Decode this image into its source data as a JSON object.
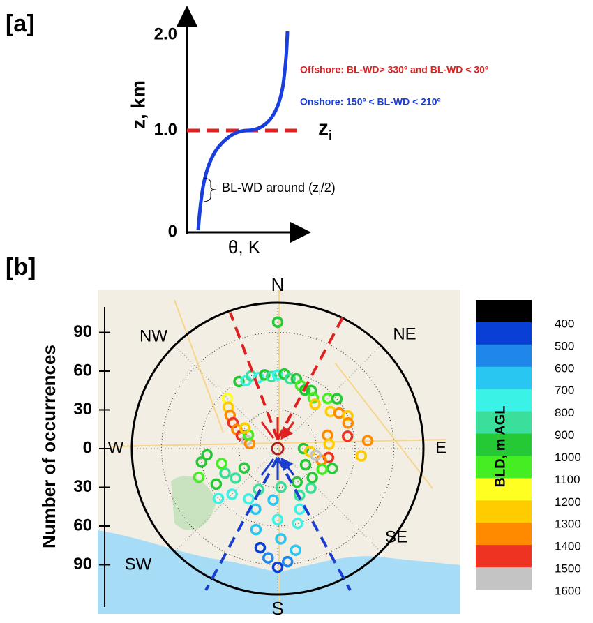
{
  "panel_a": {
    "label": "[a]",
    "y_label": "z, km",
    "x_label": "θ, K",
    "y_ticks": [
      "0",
      "1.0",
      "2.0"
    ],
    "zi_label": "z",
    "zi_sub": "i",
    "offshore": "Offshore: BL-WD> 330º  and BL-WD < 30º",
    "onshore": "Onshore: 150º < BL-WD < 210º",
    "annotation": [
      "BL-WD around (z",
      "i",
      "/2)"
    ]
  },
  "chart_data": {
    "type": "polar-scatter",
    "label": "[b]",
    "y_label": "Number of occurrences",
    "rlim": [
      0,
      113
    ],
    "rticks": [
      0,
      30,
      60,
      90
    ],
    "directions": [
      "N",
      "NE",
      "E",
      "SE",
      "S",
      "SW",
      "W",
      "NW"
    ],
    "colorbar": {
      "label": "BLD, m AGL",
      "ticks": [
        400,
        500,
        600,
        700,
        800,
        900,
        1000,
        1100,
        1200,
        1300,
        1400,
        1500,
        1600
      ],
      "colors": [
        "#000000",
        "#0a3fd6",
        "#1f86ea",
        "#29c6f2",
        "#3af2e6",
        "#3adf9c",
        "#25c936",
        "#44ee22",
        "#ffff22",
        "#ffcc00",
        "#ff8a00",
        "#ee3322",
        "#c4c4c4"
      ]
    },
    "points": {
      "direction": [
        0,
        -30,
        -25,
        -20,
        -15,
        -10,
        -5,
        0,
        5,
        10,
        15,
        20,
        25,
        30,
        35,
        40,
        -45,
        -50,
        -55,
        -60,
        -65,
        -70,
        -75,
        -80,
        -65,
        -58,
        45,
        50,
        55,
        60,
        65,
        70,
        75,
        80,
        85,
        95,
        100,
        105,
        110,
        115,
        -95,
        -100,
        -110,
        -115,
        -120,
        -125,
        -130,
        -135,
        -105,
        -120,
        180,
        175,
        185,
        170,
        190,
        178,
        165,
        195,
        180,
        160,
        200,
        155,
        175,
        150,
        140,
        130,
        205,
        210,
        185,
        90,
        95,
        100,
        120,
        85
      ],
      "count": [
        98,
        60,
        58,
        60,
        57,
        58,
        56,
        57,
        58,
        55,
        56,
        52,
        50,
        52,
        48,
        45,
        55,
        50,
        45,
        40,
        35,
        30,
        25,
        22,
        25,
        30,
        55,
        60,
        50,
        55,
        60,
        58,
        40,
        55,
        70,
        65,
        40,
        35,
        45,
        38,
        55,
        60,
        65,
        45,
        55,
        40,
        60,
        50,
        45,
        30,
        92,
        88,
        85,
        80,
        78,
        70,
        60,
        65,
        55,
        50,
        50,
        40,
        30,
        30,
        40,
        35,
        35,
        45,
        40,
        20,
        25,
        30,
        25,
        40
      ],
      "bld": [
        1000,
        1000,
        800,
        900,
        800,
        1000,
        900,
        800,
        1000,
        900,
        1000,
        1100,
        1000,
        1000,
        1100,
        1300,
        1200,
        1300,
        1400,
        1500,
        1400,
        1500,
        1600,
        1400,
        1100,
        1300,
        1100,
        1000,
        1300,
        1400,
        1300,
        1400,
        1400,
        1500,
        1400,
        1300,
        1500,
        1400,
        1000,
        1100,
        1000,
        1000,
        1100,
        900,
        1000,
        900,
        800,
        800,
        1100,
        1000,
        500,
        600,
        600,
        700,
        500,
        700,
        800,
        700,
        800,
        800,
        700,
        900,
        900,
        1000,
        900,
        1000,
        900,
        800,
        700,
        1000,
        1300,
        1600,
        1000,
        1300
      ]
    }
  }
}
